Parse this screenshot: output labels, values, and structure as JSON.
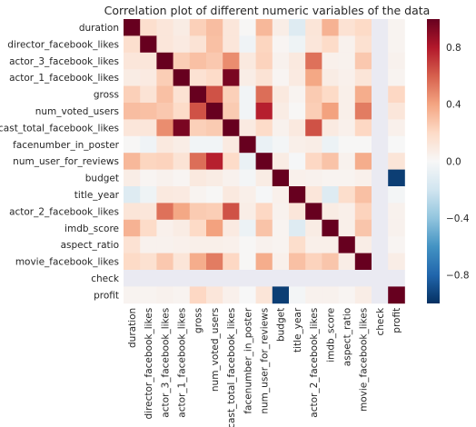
{
  "chart_data": {
    "type": "heatmap",
    "title": "Correlation plot of different numeric variables of the data",
    "xlabel": "",
    "ylabel": "",
    "variables": [
      "duration",
      "director_facebook_likes",
      "actor_3_facebook_likes",
      "actor_1_facebook_likes",
      "gross",
      "num_voted_users",
      "cast_total_facebook_likes",
      "facenumber_in_poster",
      "num_user_for_reviews",
      "budget",
      "title_year",
      "actor_2_facebook_likes",
      "imdb_score",
      "aspect_ratio",
      "movie_facebook_likes",
      "check",
      "profit"
    ],
    "values": [
      [
        1.0,
        0.17,
        0.12,
        0.08,
        0.24,
        0.31,
        0.12,
        0.01,
        0.33,
        0.07,
        -0.13,
        0.13,
        0.35,
        0.15,
        0.2,
        null,
        0.03
      ],
      [
        0.17,
        1.0,
        0.12,
        0.09,
        0.14,
        0.3,
        0.12,
        -0.04,
        0.22,
        0.02,
        -0.05,
        0.12,
        0.19,
        0.04,
        0.16,
        null,
        0.03
      ],
      [
        0.12,
        0.12,
        1.0,
        0.25,
        0.3,
        0.27,
        0.47,
        0.1,
        0.23,
        0.04,
        0.1,
        0.55,
        0.05,
        0.04,
        0.27,
        null,
        0.04
      ],
      [
        0.08,
        0.09,
        0.25,
        1.0,
        0.15,
        0.19,
        0.95,
        0.07,
        0.14,
        0.02,
        0.09,
        0.39,
        0.08,
        0.05,
        0.13,
        null,
        0.03
      ],
      [
        0.24,
        0.14,
        0.3,
        0.15,
        1.0,
        0.64,
        0.24,
        -0.03,
        0.56,
        0.1,
        0.03,
        0.26,
        0.2,
        0.06,
        0.37,
        null,
        0.21
      ],
      [
        0.31,
        0.3,
        0.27,
        0.19,
        0.64,
        1.0,
        0.26,
        -0.03,
        0.78,
        0.08,
        0.01,
        0.25,
        0.41,
        0.06,
        0.52,
        null,
        0.12
      ],
      [
        0.12,
        0.12,
        0.47,
        0.95,
        0.24,
        0.26,
        1.0,
        0.09,
        0.19,
        0.04,
        0.1,
        0.64,
        0.09,
        0.05,
        0.21,
        null,
        0.05
      ],
      [
        0.01,
        -0.04,
        0.1,
        0.07,
        -0.03,
        -0.03,
        0.09,
        1.0,
        -0.07,
        -0.02,
        0.06,
        0.07,
        -0.06,
        0.01,
        0.01,
        null,
        0.0
      ],
      [
        0.33,
        0.22,
        0.23,
        0.14,
        0.56,
        0.78,
        0.19,
        -0.07,
        1.0,
        0.08,
        -0.01,
        0.21,
        0.29,
        0.04,
        0.37,
        null,
        0.13
      ],
      [
        0.07,
        0.02,
        0.04,
        0.02,
        0.1,
        0.08,
        0.04,
        -0.02,
        0.08,
        1.0,
        0.05,
        0.04,
        0.03,
        0.03,
        0.05,
        null,
        -0.95
      ],
      [
        -0.13,
        -0.05,
        0.1,
        0.09,
        0.03,
        0.01,
        0.1,
        0.06,
        -0.01,
        0.05,
        1.0,
        0.12,
        -0.13,
        0.18,
        0.3,
        null,
        -0.02
      ],
      [
        0.13,
        0.12,
        0.55,
        0.39,
        0.26,
        0.25,
        0.64,
        0.07,
        0.21,
        0.04,
        0.12,
        1.0,
        0.08,
        0.06,
        0.23,
        null,
        0.04
      ],
      [
        0.35,
        0.19,
        0.05,
        0.08,
        0.2,
        0.41,
        0.09,
        -0.06,
        0.29,
        0.03,
        -0.13,
        0.08,
        1.0,
        0.06,
        0.28,
        null,
        0.04
      ],
      [
        0.15,
        0.04,
        0.04,
        0.05,
        0.06,
        0.06,
        0.05,
        0.01,
        0.04,
        0.03,
        0.18,
        0.06,
        0.06,
        1.0,
        0.07,
        null,
        0.02
      ],
      [
        0.2,
        0.16,
        0.27,
        0.13,
        0.37,
        0.52,
        0.21,
        0.01,
        0.37,
        0.05,
        0.3,
        0.23,
        0.28,
        0.07,
        1.0,
        null,
        0.07
      ],
      [
        null,
        null,
        null,
        null,
        null,
        null,
        null,
        null,
        null,
        null,
        null,
        null,
        null,
        null,
        null,
        null,
        null
      ],
      [
        0.03,
        0.03,
        0.04,
        0.03,
        0.21,
        0.12,
        0.05,
        0.0,
        0.13,
        -0.95,
        -0.02,
        0.04,
        0.04,
        0.02,
        0.07,
        null,
        1.0
      ]
    ],
    "vmin": -1.0,
    "vmax": 1.0,
    "colormap": "RdBu_r",
    "colors": {
      "low": "#053061",
      "mid": "#f7f7f7",
      "high": "#67001f",
      "missing": "#eaeaf2"
    },
    "colorbar": {
      "ticks": [
        -0.8,
        -0.4,
        0.0,
        0.4,
        0.8
      ],
      "tick_labels": [
        "−0.8",
        "−0.4",
        "0.0",
        "0.4",
        "0.8"
      ],
      "placement": "right"
    },
    "grid": false
  }
}
